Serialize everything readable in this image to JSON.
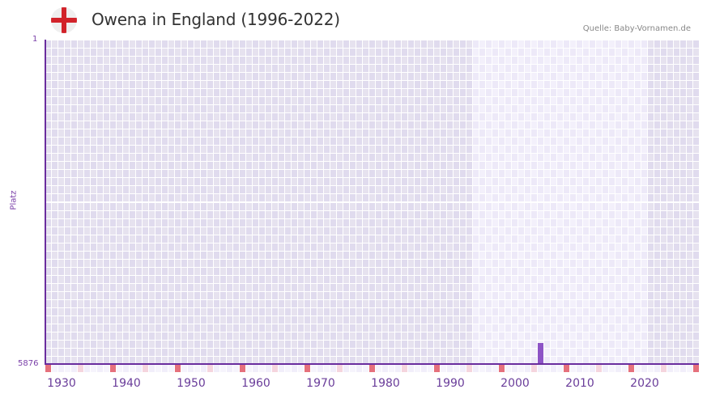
{
  "header": {
    "title": "Owena in England (1996-2022)",
    "flag_icon": "england-flag-icon",
    "source": "Quelle: Baby-Vornamen.de"
  },
  "chart_data": {
    "type": "bar",
    "title": "Owena in England (1996-2022)",
    "xlabel": "",
    "ylabel": "Platz",
    "y_axis": {
      "top_label": "1",
      "bottom_label": "5876",
      "inverted": true,
      "range": [
        1,
        5876
      ]
    },
    "x_axis": {
      "tick_labels": [
        "1930",
        "1940",
        "1950",
        "1960",
        "1970",
        "1980",
        "1990",
        "2000",
        "2010",
        "2020"
      ],
      "range": [
        1928,
        2028
      ]
    },
    "data_period": [
      1996,
      2022
    ],
    "grid": true,
    "legend": null,
    "series": [
      {
        "name": "Owena",
        "color": "#8d54c6",
        "points": [
          {
            "year": 2004,
            "rank": 5495
          }
        ]
      }
    ],
    "highlight_region": {
      "from": 1994,
      "to": 2020,
      "color": "#f1eefa"
    }
  },
  "colors": {
    "accent": "#6a2d9e",
    "bar": "#8d54c6",
    "plot_bg": "#e2dded",
    "plot_bg_highlight": "#f1eefa",
    "decade_marker": "#e5707c",
    "half_decade_marker": "#f5d5de"
  }
}
